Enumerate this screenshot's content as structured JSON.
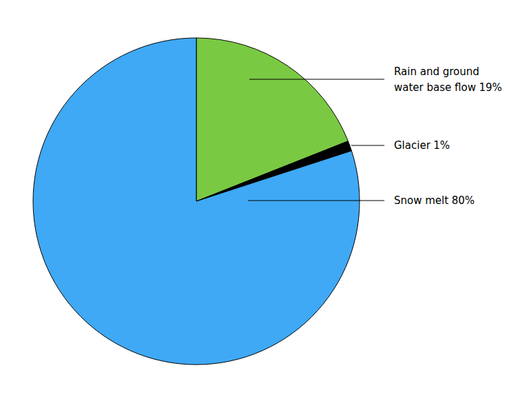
{
  "chart_data": {
    "type": "pie",
    "categories": [
      "Rain and ground water base flow",
      "Glacier",
      "Snow melt"
    ],
    "values": [
      19,
      1,
      80
    ],
    "value_labels": [
      "19%",
      "1%",
      "80%"
    ],
    "data_labels": true,
    "colors": [
      "#7ac943",
      "#000000",
      "#3fa9f5"
    ]
  }
}
